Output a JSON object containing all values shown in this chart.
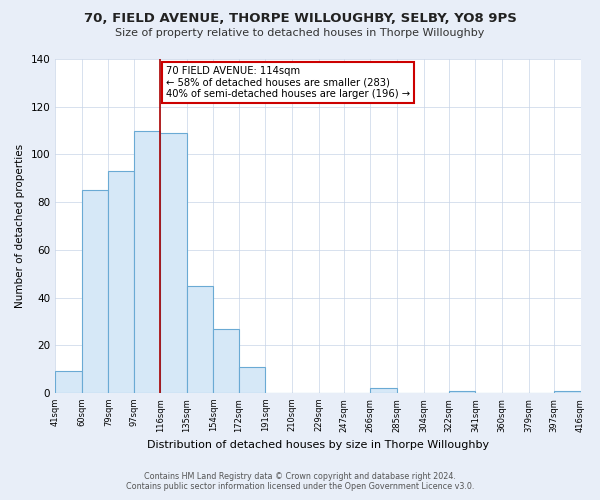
{
  "title": "70, FIELD AVENUE, THORPE WILLOUGHBY, SELBY, YO8 9PS",
  "subtitle": "Size of property relative to detached houses in Thorpe Willoughby",
  "xlabel": "Distribution of detached houses by size in Thorpe Willoughby",
  "ylabel": "Number of detached properties",
  "bar_edges": [
    41,
    60,
    79,
    97,
    116,
    135,
    154,
    172,
    191,
    210,
    229,
    247,
    266,
    285,
    304,
    322,
    341,
    360,
    379,
    397,
    416
  ],
  "bar_heights": [
    9,
    85,
    93,
    110,
    109,
    45,
    27,
    11,
    0,
    0,
    0,
    0,
    2,
    0,
    0,
    1,
    0,
    0,
    0,
    1
  ],
  "bar_color": "#d6e8f7",
  "bar_edgecolor": "#6aaad4",
  "vline_x": 116,
  "vline_color": "#aa0000",
  "annotation_text": "70 FIELD AVENUE: 114sqm\n← 58% of detached houses are smaller (283)\n40% of semi-detached houses are larger (196) →",
  "annotation_box_color": "#ffffff",
  "annotation_box_edgecolor": "#cc0000",
  "ylim": [
    0,
    140
  ],
  "xlim": [
    41,
    416
  ],
  "yticks": [
    0,
    20,
    40,
    60,
    80,
    100,
    120,
    140
  ],
  "tick_labels": [
    "41sqm",
    "60sqm",
    "79sqm",
    "97sqm",
    "116sqm",
    "135sqm",
    "154sqm",
    "172sqm",
    "191sqm",
    "210sqm",
    "229sqm",
    "247sqm",
    "266sqm",
    "285sqm",
    "304sqm",
    "322sqm",
    "341sqm",
    "360sqm",
    "379sqm",
    "397sqm",
    "416sqm"
  ],
  "tick_positions": [
    41,
    60,
    79,
    97,
    116,
    135,
    154,
    172,
    191,
    210,
    229,
    247,
    266,
    285,
    304,
    322,
    341,
    360,
    379,
    397,
    416
  ],
  "footer_line1": "Contains HM Land Registry data © Crown copyright and database right 2024.",
  "footer_line2": "Contains public sector information licensed under the Open Government Licence v3.0.",
  "bg_color": "#e8eef8",
  "plot_bg_color": "#ffffff",
  "grid_color": "#c8d4e8"
}
